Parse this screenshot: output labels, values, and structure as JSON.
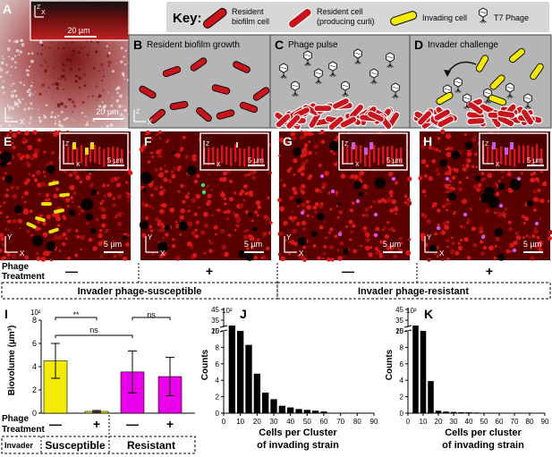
{
  "panel_letters": {
    "A": "A",
    "B": "B",
    "C": "C",
    "D": "D",
    "E": "E",
    "F": "F",
    "G": "G",
    "H": "H",
    "I": "I",
    "J": "J",
    "K": "K"
  },
  "key": {
    "title": "Key:",
    "resident": "Resident",
    "resident2": "biofilm cell",
    "curli": "Resident cell",
    "curli2": "(producing curli)",
    "invading": "Invading cell",
    "phage": "T7 Phage"
  },
  "schematics": {
    "B": "Resident biofilm growth",
    "C": "Phage pulse",
    "D": "Invader challenge"
  },
  "axes": {
    "x": "X",
    "y": "Y",
    "z": "Z"
  },
  "scalebars": {
    "A_inset": "20 µm",
    "A": "20 µm",
    "um5": "5 µm"
  },
  "treatment": {
    "label1": "Phage",
    "label2": "Treatment",
    "minus": "—",
    "plus": "+",
    "susceptible_group": "Invader phage-susceptible",
    "resistant_group": "Invader phage-resistant"
  },
  "panelI": {
    "ylabel": "Biovolume (µm³)",
    "exp": "10²",
    "yticks": [
      "0",
      "2",
      "4",
      "6",
      "8"
    ],
    "sig1": "**",
    "sig2": "ns",
    "sig3": "ns",
    "phage1": "Phage",
    "phage2": "Treatment",
    "invader": "Invader",
    "susceptible": "Susceptible",
    "resistant": "Resistant"
  },
  "panelJ": {
    "ylabel": "Counts",
    "exp": "10²",
    "xlabel1": "Cells per Cluster",
    "xlabel2": "of invading strain",
    "yticks": [
      "0",
      "2",
      "4",
      "6",
      "8",
      "10",
      "25",
      "35",
      "45"
    ],
    "xticks": [
      "0",
      "10",
      "20",
      "30",
      "40",
      "50",
      "60",
      "70",
      "80",
      "90"
    ]
  },
  "panelK": {
    "ylabel": "Counts",
    "exp": "10²",
    "xlabel1": "Cells per cluster",
    "xlabel2": "of invading strain",
    "yticks": [
      "0",
      "2",
      "4",
      "6",
      "8",
      "10",
      "25",
      "35",
      "45"
    ],
    "xticks": [
      "0",
      "10",
      "20",
      "30",
      "40",
      "50",
      "60",
      "70",
      "80",
      "90"
    ]
  },
  "chart_data": [
    {
      "type": "bar",
      "categories": [
        "Susceptible −",
        "Susceptible +",
        "Resistant −",
        "Resistant +"
      ],
      "values": [
        4.5,
        0.15,
        3.55,
        3.15
      ],
      "errors": [
        1.5,
        0.08,
        1.8,
        1.65
      ],
      "colors": [
        "#f2ea00",
        "#f2ea00",
        "#ea00ea",
        "#ea00ea"
      ],
      "ylim": [
        0,
        8
      ],
      "ylabel": "Biovolume (µm³)",
      "y_multiplier": "10²"
    },
    {
      "type": "bar",
      "x": [
        5,
        10,
        15,
        20,
        25,
        30,
        35,
        40,
        45,
        50,
        55,
        60
      ],
      "values": [
        30,
        10,
        8.3,
        4.8,
        2.5,
        1.7,
        0.9,
        0.7,
        0.5,
        0.4,
        0.3,
        0.2
      ],
      "ylim": [
        0,
        45
      ],
      "xlim": [
        0,
        90
      ],
      "ylabel": "Counts",
      "y_multiplier": "10²",
      "xlabel": "Cells per Cluster of invading strain"
    },
    {
      "type": "bar",
      "x": [
        5,
        10,
        15,
        20,
        25,
        30,
        35,
        40,
        45,
        50,
        55
      ],
      "values": [
        30,
        10,
        3.9,
        0.3,
        0.2,
        0.15,
        0.12,
        0.1,
        0.08,
        0.06,
        0.05
      ],
      "ylim": [
        0,
        45
      ],
      "xlim": [
        0,
        90
      ],
      "ylabel": "Counts",
      "y_multiplier": "10²",
      "xlabel": "Cells per cluster of invading strain"
    }
  ]
}
